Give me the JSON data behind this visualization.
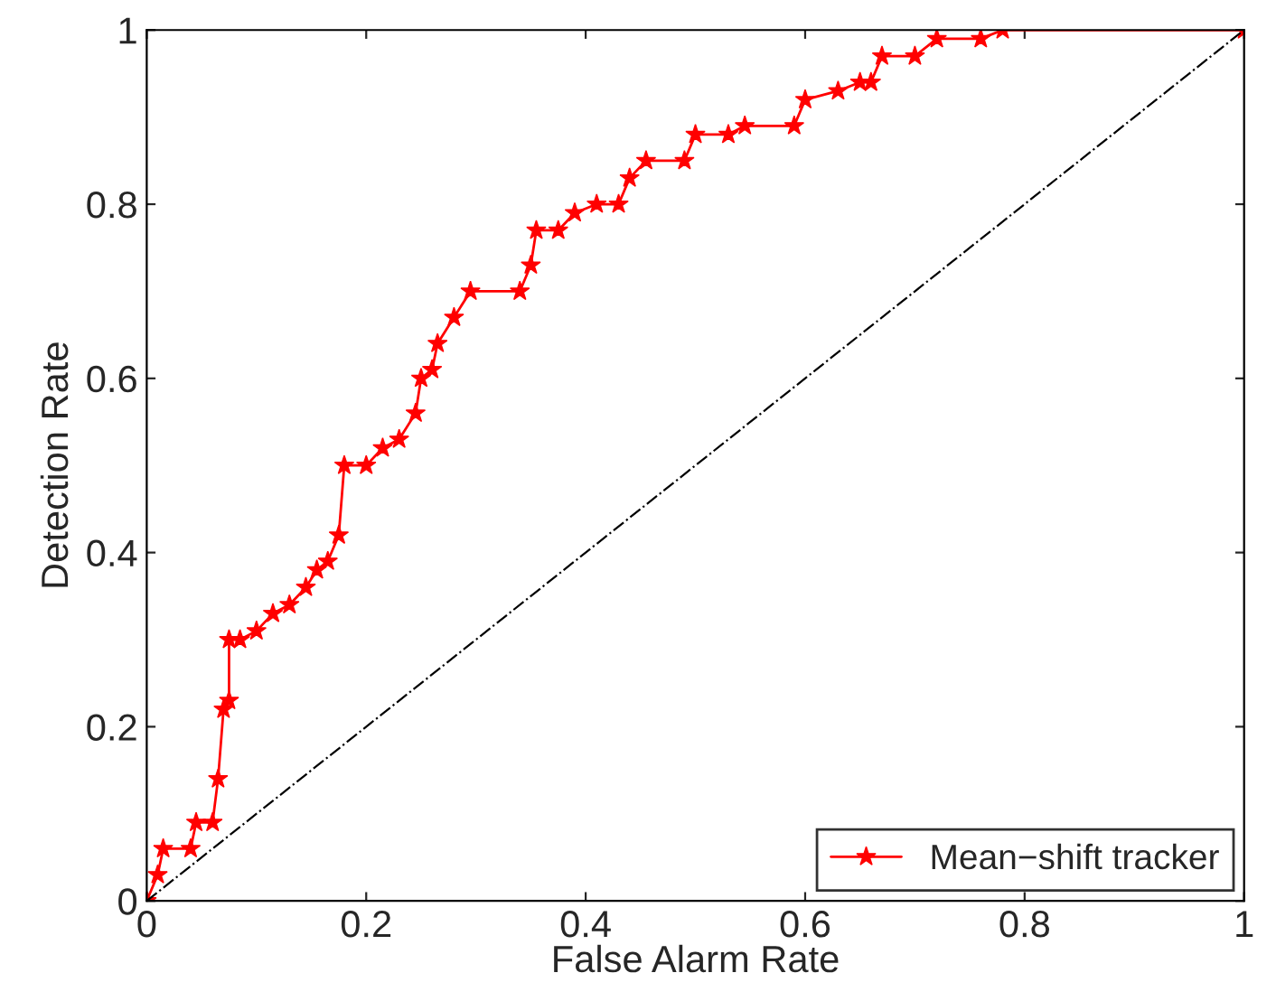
{
  "chart_data": {
    "type": "line",
    "xlabel": "False Alarm Rate",
    "ylabel": "Detection Rate",
    "xlim": [
      0,
      1
    ],
    "ylim": [
      0,
      1
    ],
    "xticks": [
      0,
      0.2,
      0.4,
      0.6,
      0.8,
      1
    ],
    "yticks": [
      0,
      0.2,
      0.4,
      0.6,
      0.8,
      1
    ],
    "grid": false,
    "legend": "bottom right",
    "series": [
      {
        "name": "Mean−shift tracker",
        "color": "#ff0000",
        "marker": "star",
        "line_style": "solid",
        "x": [
          0,
          0.01,
          0.015,
          0.04,
          0.045,
          0.06,
          0.065,
          0.07,
          0.075,
          0.075,
          0.085,
          0.1,
          0.115,
          0.13,
          0.145,
          0.155,
          0.165,
          0.175,
          0.18,
          0.2,
          0.215,
          0.23,
          0.245,
          0.25,
          0.26,
          0.265,
          0.28,
          0.295,
          0.34,
          0.35,
          0.355,
          0.375,
          0.39,
          0.41,
          0.43,
          0.44,
          0.455,
          0.49,
          0.5,
          0.53,
          0.545,
          0.59,
          0.6,
          0.63,
          0.65,
          0.66,
          0.67,
          0.7,
          0.72,
          0.76,
          0.78,
          1.0
        ],
        "values": [
          0,
          0.03,
          0.06,
          0.06,
          0.09,
          0.09,
          0.14,
          0.22,
          0.23,
          0.3,
          0.3,
          0.31,
          0.33,
          0.34,
          0.36,
          0.38,
          0.39,
          0.42,
          0.5,
          0.5,
          0.52,
          0.53,
          0.56,
          0.6,
          0.61,
          0.64,
          0.67,
          0.7,
          0.7,
          0.73,
          0.77,
          0.77,
          0.79,
          0.8,
          0.8,
          0.83,
          0.85,
          0.85,
          0.88,
          0.88,
          0.89,
          0.89,
          0.92,
          0.93,
          0.94,
          0.94,
          0.97,
          0.97,
          0.99,
          0.99,
          1.0,
          1.0
        ]
      },
      {
        "color": "#000000",
        "marker": "none",
        "line_style": "dashdot",
        "x": [
          0,
          1
        ],
        "values": [
          0,
          1
        ]
      }
    ]
  }
}
